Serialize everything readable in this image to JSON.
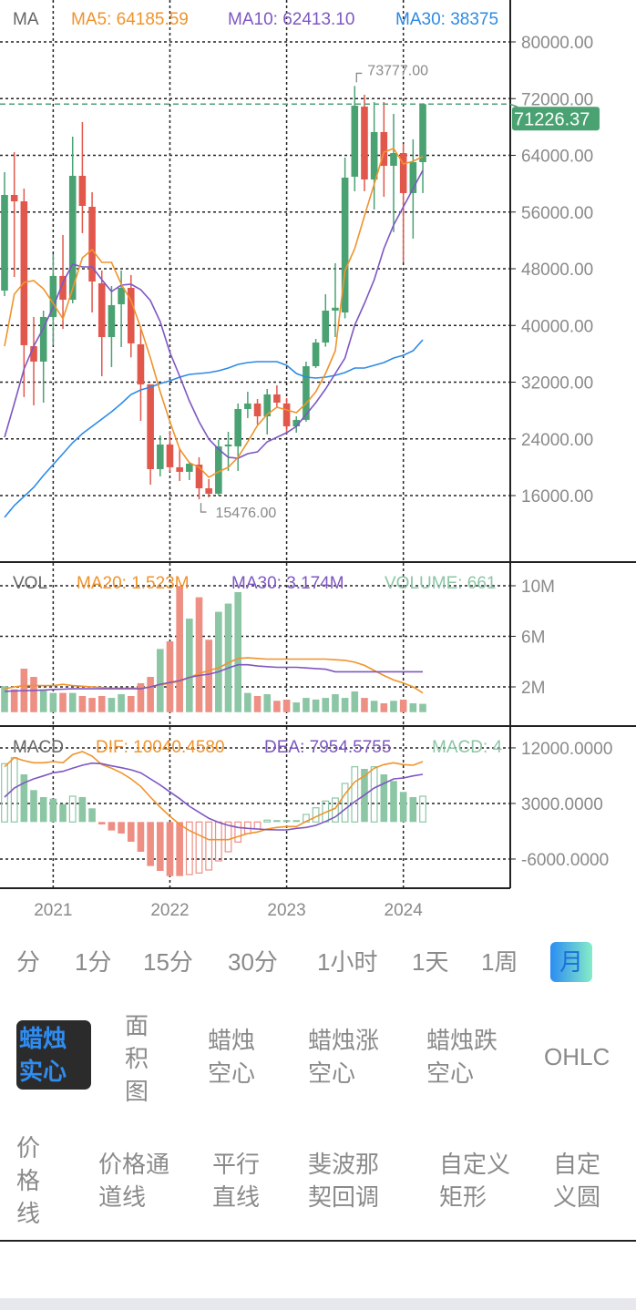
{
  "legend": {
    "price": {
      "name": "MA",
      "ma5": "MA5: 64185.59",
      "ma10": "MA10: 62413.10",
      "ma30": "MA30: 38375"
    },
    "volume": {
      "name": "VOL",
      "ma20": "MA20: 1.523M",
      "ma30": "MA30: 3.174M",
      "volume": "VOLUME: 661"
    },
    "macd": {
      "name": "MACD",
      "dif": "DIF: 10040.4580",
      "dea": "DEA: 7954.5755",
      "macd": "MACD: 4"
    }
  },
  "colors": {
    "up": "#4aa272",
    "down": "#e2574c",
    "vol_up": "#8cc6a5",
    "vol_down": "#ee8f84",
    "ma5": "#f0932b",
    "ma10": "#7e57c2",
    "ma30": "#2d8ae6",
    "grid": "#222222",
    "axis_text": "#8a8a8a",
    "last_price_bg": "#4aa272"
  },
  "chart_data": [
    {
      "type": "candlestick",
      "title": "MA",
      "y_ticks": [
        "80000.00",
        "72000.00",
        "64000.00",
        "56000.00",
        "48000.00",
        "40000.00",
        "32000.00",
        "24000.00",
        "16000.00"
      ],
      "y_tick_values": [
        80000,
        72000,
        64000,
        56000,
        48000,
        40000,
        32000,
        24000,
        16000
      ],
      "ylim": [
        16000,
        80000
      ],
      "x_labels": [
        {
          "label": "2021",
          "index": 5
        },
        {
          "label": "2022",
          "index": 17
        },
        {
          "label": "2023",
          "index": 29
        },
        {
          "label": "2024",
          "index": 41
        }
      ],
      "open": [
        44920,
        58410,
        57510,
        37080,
        34900,
        41190,
        46980,
        43630,
        61110,
        56740,
        45950,
        38360,
        42990,
        45300,
        37340,
        31690,
        19730,
        23200,
        19990,
        19350,
        20370,
        17030,
        16260,
        22940,
        22940,
        28210,
        28990,
        27180,
        30270,
        29000,
        25770,
        26680,
        34250,
        37590,
        42100,
        41830,
        60980,
        70870,
        60590,
        67280,
        62520,
        64320,
        58670,
        63040
      ],
      "high": [
        61620,
        64450,
        59310,
        41190,
        42090,
        50060,
        52760,
        66640,
        68690,
        58800,
        47750,
        45560,
        47750,
        47110,
        39910,
        31690,
        24490,
        25130,
        22690,
        20760,
        21400,
        18320,
        23840,
        25000,
        28990,
        30650,
        29620,
        31040,
        31560,
        29750,
        27180,
        34900,
        38100,
        44400,
        48780,
        63680,
        73777,
        72550,
        71520,
        71520,
        69850,
        65610,
        66250,
        71350
      ],
      "low": [
        44150,
        46850,
        29890,
        28730,
        29110,
        37210,
        39520,
        43120,
        53020,
        41830,
        32840,
        34130,
        36950,
        35500,
        26540,
        17540,
        18700,
        19350,
        18060,
        18190,
        15476,
        15760,
        16000,
        19480,
        19480,
        26930,
        26030,
        24620,
        28470,
        24870,
        24870,
        26420,
        34000,
        37000,
        38360,
        41000,
        58930,
        58930,
        56360,
        58150,
        53150,
        48900,
        52250,
        58670
      ],
      "close": [
        58410,
        57510,
        37210,
        34900,
        41190,
        46980,
        43630,
        61110,
        56870,
        46200,
        38360,
        42860,
        45300,
        37470,
        31690,
        19730,
        23200,
        19990,
        19350,
        20500,
        17030,
        16260,
        22940,
        23200,
        28210,
        28990,
        27180,
        30270,
        29110,
        25770,
        26680,
        34250,
        37590,
        42090,
        42500,
        60850,
        71000,
        60590,
        67280,
        62520,
        64320,
        58670,
        63040,
        71226.37
      ],
      "ma5": [
        37081,
        44405,
        46076,
        46333,
        45176,
        43120,
        40936,
        45176,
        49545,
        50702,
        48903,
        48903,
        45819,
        43506,
        39651,
        35410,
        30656,
        26415,
        22560,
        20633,
        19990,
        18577,
        19348,
        19990,
        21404,
        23588,
        25901,
        27443,
        28471,
        28086,
        27700,
        28985,
        30656,
        33226,
        36438,
        47746,
        50830,
        55456,
        59954,
        64451,
        64965,
        62781,
        63166,
        63809
      ],
      "ma10": [
        24231,
        28985,
        33868,
        37081,
        39651,
        42606,
        46076,
        48646,
        48260,
        48260,
        46461,
        44791,
        45690,
        45819,
        45048,
        43506,
        40550,
        36181,
        32840,
        29371,
        26415,
        23974,
        22560,
        21404,
        21275,
        21918,
        22175,
        23588,
        24231,
        24873,
        25773,
        27443,
        29114,
        31041,
        33226,
        35410,
        40036,
        43120,
        46461,
        50830,
        54171,
        56741,
        59311,
        61881
      ],
      "ma30": [
        12923,
        14593,
        15878,
        17163,
        18834,
        20376,
        21918,
        23460,
        24745,
        25773,
        26801,
        27829,
        28985,
        30270,
        30913,
        31298,
        31812,
        32198,
        32712,
        33097,
        33226,
        33354,
        33611,
        33997,
        34511,
        34768,
        34896,
        34896,
        34896,
        34382,
        33226,
        32712,
        32583,
        32712,
        32969,
        33354,
        33997,
        33997,
        34382,
        34768,
        35410,
        35796,
        36438,
        37980
      ],
      "last_price": "71226.37",
      "max_label": "73777.00",
      "max_index": 36,
      "min_label": "15476.00",
      "min_index": 20
    },
    {
      "type": "bar",
      "title": "VOL",
      "unit": "M",
      "y_ticks": [
        "10M",
        "6M",
        "2M"
      ],
      "y_tick_values": [
        10,
        6,
        2
      ],
      "values": [
        2.05,
        1.81,
        3.44,
        2.79,
        1.81,
        1.52,
        1.52,
        1.52,
        1.28,
        1.13,
        1.28,
        1.13,
        1.42,
        1.28,
        2.29,
        2.79,
        5.0,
        5.6,
        9.98,
        7.4,
        9.09,
        5.73,
        7.94,
        8.59,
        9.5,
        1.52,
        1.28,
        1.42,
        0.9,
        0.99,
        0.77,
        1.13,
        1.0,
        1.13,
        1.42,
        1.13,
        1.64,
        1.13,
        0.9,
        0.7,
        0.9,
        0.99,
        0.7,
        0.66
      ],
      "direction": [
        "up",
        "down",
        "down",
        "down",
        "up",
        "up",
        "down",
        "up",
        "down",
        "down",
        "down",
        "up",
        "up",
        "down",
        "down",
        "down",
        "up",
        "down",
        "down",
        "up",
        "down",
        "down",
        "up",
        "up",
        "up",
        "up",
        "down",
        "up",
        "down",
        "down",
        "up",
        "up",
        "up",
        "up",
        "up",
        "up",
        "up",
        "down",
        "up",
        "down",
        "up",
        "down",
        "up",
        "up"
      ],
      "ma20": [
        1.85,
        2.0,
        2.1,
        2.1,
        2.1,
        2.1,
        2.2,
        2.1,
        2.05,
        2.0,
        1.95,
        1.9,
        1.9,
        1.9,
        1.9,
        2.0,
        2.15,
        2.3,
        2.45,
        2.75,
        3.05,
        3.3,
        3.5,
        3.9,
        4.25,
        4.3,
        4.25,
        4.2,
        4.2,
        4.2,
        4.2,
        4.2,
        4.2,
        4.2,
        4.15,
        4.1,
        3.95,
        3.7,
        3.3,
        2.9,
        2.55,
        2.3,
        2.0,
        1.52
      ],
      "ma30": [
        1.65,
        1.68,
        1.7,
        1.72,
        1.75,
        1.8,
        1.82,
        1.85,
        1.85,
        1.85,
        1.85,
        1.85,
        1.85,
        1.85,
        1.85,
        2.0,
        2.2,
        2.35,
        2.5,
        2.75,
        2.9,
        3.0,
        3.2,
        3.5,
        3.75,
        3.75,
        3.65,
        3.6,
        3.55,
        3.55,
        3.55,
        3.5,
        3.45,
        3.4,
        3.2,
        3.2,
        3.2,
        3.2,
        3.2,
        3.2,
        3.2,
        3.2,
        3.2,
        3.2
      ]
    },
    {
      "type": "bar",
      "title": "MACD",
      "y_ticks": [
        "12000.0000",
        "3000.0000",
        "-6000.0000"
      ],
      "y_tick_values": [
        12000,
        3000,
        -6000
      ],
      "histogram": [
        9440,
        10410,
        7710,
        5160,
        4030,
        3780,
        2900,
        4170,
        4030,
        2210,
        -400,
        -1380,
        -1870,
        -3200,
        -4820,
        -7130,
        -7920,
        -8760,
        -8760,
        -8510,
        -8260,
        -7770,
        -6300,
        -4820,
        -3250,
        -1870,
        -1140,
        300,
        300,
        300,
        300,
        1220,
        2300,
        3390,
        3880,
        6240,
        8940,
        8600,
        8940,
        7710,
        6640,
        4870,
        4030,
        4170
      ],
      "dif": [
        8940,
        10410,
        9930,
        9590,
        9590,
        9780,
        9590,
        10900,
        11400,
        10660,
        9290,
        8700,
        7960,
        6980,
        5750,
        4030,
        2400,
        930,
        -400,
        -1380,
        -2120,
        -2860,
        -2860,
        -2860,
        -2360,
        -1870,
        -1620,
        -1140,
        -880,
        -740,
        -740,
        90,
        830,
        1560,
        2210,
        4510,
        6490,
        7460,
        8700,
        9290,
        9590,
        9290,
        9190,
        9780
      ],
      "dea": [
        4030,
        5500,
        6340,
        6980,
        7460,
        7960,
        8200,
        8700,
        9190,
        9530,
        9440,
        9090,
        8790,
        8450,
        7960,
        6980,
        5990,
        4870,
        3780,
        2550,
        1560,
        590,
        -60,
        -550,
        -880,
        -1030,
        -1140,
        -1240,
        -1290,
        -1290,
        -1030,
        -880,
        -550,
        90,
        830,
        2060,
        3290,
        4370,
        5500,
        6240,
        6980,
        7120,
        7460,
        7710
      ]
    }
  ],
  "periods": [
    {
      "label": "分",
      "selected": false
    },
    {
      "label": "1分",
      "selected": false
    },
    {
      "label": "15分",
      "selected": false
    },
    {
      "label": "30分",
      "selected": false
    },
    {
      "label": "1小时",
      "selected": false
    },
    {
      "label": "1天",
      "selected": false
    },
    {
      "label": "1周",
      "selected": false
    },
    {
      "label": "月",
      "selected": true
    }
  ],
  "chart_types": [
    {
      "label": "蜡烛实心",
      "selected": true
    },
    {
      "label": "面积图",
      "selected": false
    },
    {
      "label": "蜡烛空心",
      "selected": false
    },
    {
      "label": "蜡烛涨空心",
      "selected": false
    },
    {
      "label": "蜡烛跌空心",
      "selected": false
    },
    {
      "label": "OHLC",
      "selected": false
    }
  ],
  "tools": [
    {
      "label": "价格线"
    },
    {
      "label": "价格通道线"
    },
    {
      "label": "平行直线"
    },
    {
      "label": "斐波那契回调"
    },
    {
      "label": "自定义矩形"
    },
    {
      "label": "自定义圆"
    }
  ]
}
